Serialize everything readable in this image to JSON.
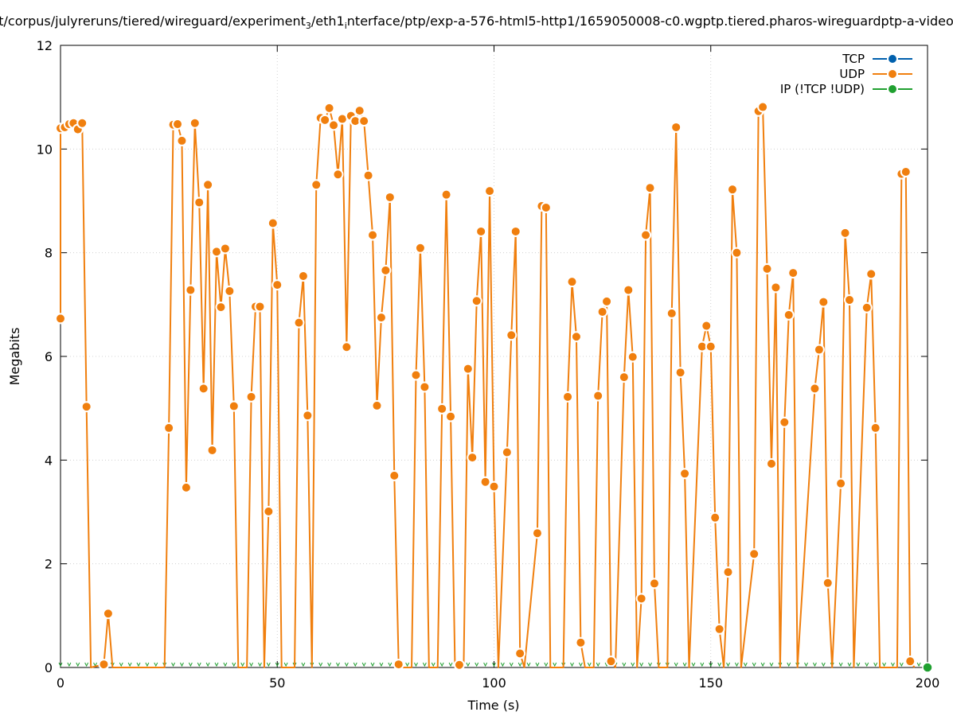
{
  "chart_data": {
    "type": "line",
    "title": "t/corpus/julyreruns/tiered/wireguard/experiment",
    "title_sub": "3",
    "title_mid": "/eth1",
    "title_sub2": "i",
    "title_end": "nterface/ptp/exp-a-576-html5-http1/1659050008-c0.wgptp.tiered.pharos-wireguardptp-a-video",
    "xlabel": "Time (s)",
    "ylabel": "Megabits",
    "xlim": [
      0,
      200
    ],
    "ylim": [
      0,
      12
    ],
    "x_ticks": [
      0,
      50,
      100,
      150,
      200
    ],
    "y_ticks": [
      0,
      2,
      4,
      6,
      8,
      10,
      12
    ],
    "grid": true,
    "legend_position": "top-right",
    "series": [
      {
        "name": "TCP",
        "color": "#0060ad",
        "points": [
          [
            200,
            0
          ]
        ]
      },
      {
        "name": "UDP",
        "color": "#f07f0e",
        "points": [
          [
            -1,
            6.73
          ],
          [
            0,
            10.4
          ],
          [
            1,
            10.42
          ],
          [
            2,
            10.48
          ],
          [
            3,
            10.5
          ],
          [
            4,
            10.38
          ],
          [
            5,
            10.5
          ],
          [
            6,
            5.03
          ],
          [
            7,
            0
          ],
          [
            10,
            0.06
          ],
          [
            11,
            1.04
          ],
          [
            12,
            0
          ],
          [
            24,
            0
          ],
          [
            25,
            4.62
          ],
          [
            26,
            10.47
          ],
          [
            27,
            10.48
          ],
          [
            28,
            10.16
          ],
          [
            29,
            3.47
          ],
          [
            30,
            7.28
          ],
          [
            31,
            10.5
          ],
          [
            32,
            8.97
          ],
          [
            33,
            5.38
          ],
          [
            34,
            9.31
          ],
          [
            35,
            4.19
          ],
          [
            36,
            8.02
          ],
          [
            37,
            6.95
          ],
          [
            38,
            8.08
          ],
          [
            39,
            7.26
          ],
          [
            40,
            5.04
          ],
          [
            41,
            0
          ],
          [
            43,
            0
          ],
          [
            44,
            5.22
          ],
          [
            45,
            6.96
          ],
          [
            46,
            6.96
          ],
          [
            47,
            0
          ],
          [
            48,
            3.01
          ],
          [
            49,
            8.57
          ],
          [
            50,
            7.38
          ],
          [
            51,
            0
          ],
          [
            54,
            0
          ],
          [
            55,
            6.65
          ],
          [
            56,
            7.55
          ],
          [
            57,
            4.86
          ],
          [
            58,
            0
          ],
          [
            59,
            9.31
          ],
          [
            60,
            10.6
          ],
          [
            61,
            10.56
          ],
          [
            62,
            10.79
          ],
          [
            63,
            10.46
          ],
          [
            64,
            9.51
          ],
          [
            65,
            10.58
          ],
          [
            66,
            6.18
          ],
          [
            67,
            10.64
          ],
          [
            68,
            10.54
          ],
          [
            69,
            10.74
          ],
          [
            70,
            10.54
          ],
          [
            71,
            9.49
          ],
          [
            72,
            8.34
          ],
          [
            73,
            5.05
          ],
          [
            74,
            6.75
          ],
          [
            75,
            7.66
          ],
          [
            76,
            9.07
          ],
          [
            77,
            3.7
          ],
          [
            78,
            0.06
          ],
          [
            79,
            0
          ],
          [
            81,
            0
          ],
          [
            82,
            5.64
          ],
          [
            83,
            8.09
          ],
          [
            84,
            5.41
          ],
          [
            85,
            0
          ],
          [
            87,
            0
          ],
          [
            88,
            4.99
          ],
          [
            89,
            9.12
          ],
          [
            90,
            4.84
          ],
          [
            91,
            0
          ],
          [
            92,
            0.05
          ],
          [
            93,
            0
          ],
          [
            94,
            5.76
          ],
          [
            95,
            4.05
          ],
          [
            96,
            7.07
          ],
          [
            97,
            8.41
          ],
          [
            98,
            3.58
          ],
          [
            99,
            9.19
          ],
          [
            100,
            3.49
          ],
          [
            101,
            0
          ],
          [
            103,
            4.15
          ],
          [
            104,
            6.41
          ],
          [
            105,
            8.41
          ],
          [
            106,
            0.27
          ],
          [
            107,
            0
          ],
          [
            110,
            2.59
          ],
          [
            111,
            8.9
          ],
          [
            112,
            8.87
          ],
          [
            113,
            0
          ],
          [
            116,
            0
          ],
          [
            117,
            5.22
          ],
          [
            118,
            7.44
          ],
          [
            119,
            6.38
          ],
          [
            120,
            0.48
          ],
          [
            121,
            0
          ],
          [
            123,
            0
          ],
          [
            124,
            5.24
          ],
          [
            125,
            6.86
          ],
          [
            126,
            7.06
          ],
          [
            127,
            0.12
          ],
          [
            128,
            0
          ],
          [
            130,
            5.6
          ],
          [
            131,
            7.28
          ],
          [
            132,
            5.99
          ],
          [
            133,
            0
          ],
          [
            134,
            1.33
          ],
          [
            135,
            8.34
          ],
          [
            136,
            9.25
          ],
          [
            137,
            1.62
          ],
          [
            138,
            0
          ],
          [
            140,
            0
          ],
          [
            141,
            6.83
          ],
          [
            142,
            10.42
          ],
          [
            143,
            5.69
          ],
          [
            144,
            3.74
          ],
          [
            145,
            0
          ],
          [
            148,
            6.19
          ],
          [
            149,
            6.59
          ],
          [
            150,
            6.19
          ],
          [
            151,
            2.89
          ],
          [
            152,
            0.74
          ],
          [
            153,
            0
          ],
          [
            154,
            1.84
          ],
          [
            155,
            9.22
          ],
          [
            156,
            8.0
          ],
          [
            157,
            0
          ],
          [
            160,
            2.19
          ],
          [
            161,
            10.73
          ],
          [
            162,
            10.81
          ],
          [
            163,
            7.69
          ],
          [
            164,
            3.93
          ],
          [
            165,
            7.33
          ],
          [
            166,
            0
          ],
          [
            167,
            4.73
          ],
          [
            168,
            6.8
          ],
          [
            169,
            7.61
          ],
          [
            170,
            0
          ],
          [
            174,
            5.38
          ],
          [
            175,
            6.13
          ],
          [
            176,
            7.05
          ],
          [
            177,
            1.63
          ],
          [
            178,
            0
          ],
          [
            180,
            3.55
          ],
          [
            181,
            8.38
          ],
          [
            182,
            7.09
          ],
          [
            183,
            0
          ],
          [
            186,
            6.94
          ],
          [
            187,
            7.59
          ],
          [
            188,
            4.62
          ],
          [
            189,
            0
          ],
          [
            193,
            0
          ],
          [
            194,
            9.52
          ],
          [
            195,
            9.56
          ],
          [
            196,
            0.12
          ],
          [
            197,
            0
          ]
        ]
      },
      {
        "name": "IP (!TCP  !UDP)",
        "color": "#20a030",
        "points": []
      }
    ]
  }
}
